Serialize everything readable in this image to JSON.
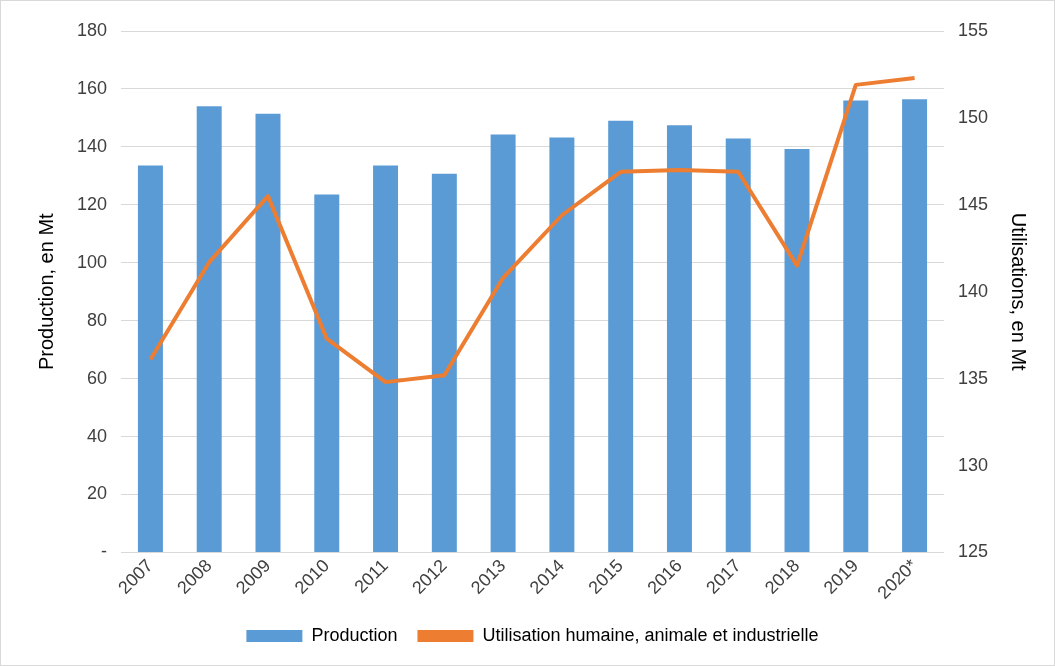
{
  "chart_data": {
    "type": "bar",
    "categories": [
      "2007",
      "2008",
      "2009",
      "2010",
      "2011",
      "2012",
      "2013",
      "2014",
      "2015",
      "2016",
      "2017",
      "2018",
      "2019",
      "2020*"
    ],
    "ylabel": "Production, en Mt",
    "y2label": "Utilisations, en Mt",
    "series": [
      {
        "name": "Production",
        "color": "#5b9bd5",
        "values": [
          133.6,
          154,
          151.4,
          123.6,
          133.6,
          130.7,
          144.3,
          143.2,
          149,
          147.5,
          142.9,
          139.3,
          156,
          156.4
        ]
      },
      {
        "name": "Utilisation humaine, animale et industrielle",
        "type": "line",
        "axis": "y2",
        "color": "#ed7d31",
        "values": [
          136.1,
          141.7,
          145.5,
          137.3,
          134.8,
          135.2,
          140.8,
          144.4,
          146.9,
          147.0,
          146.9,
          141.5,
          151.9,
          152.3
        ]
      }
    ],
    "ylim": [
      0,
      180
    ],
    "yticks": [
      {
        "value": 0,
        "label": "-"
      },
      20,
      40,
      60,
      80,
      100,
      120,
      140,
      160,
      180
    ],
    "y2lim": [
      125,
      155
    ],
    "y2ticks": [
      125,
      130,
      135,
      140,
      145,
      150,
      155
    ],
    "grid": "y",
    "legend": "bottom",
    "marker": "none"
  }
}
